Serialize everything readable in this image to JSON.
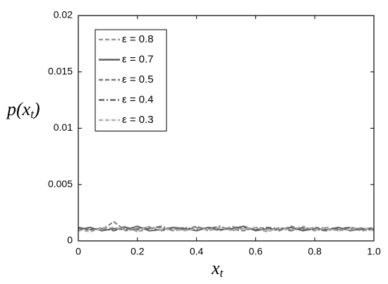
{
  "chart_data": {
    "type": "line",
    "x_label": [
      "x",
      "t"
    ],
    "y_label": [
      "p(x",
      "t",
      ")"
    ],
    "x": [
      0,
      0.04,
      0.08,
      0.12,
      0.16,
      0.2,
      0.24,
      0.28,
      0.32,
      0.36,
      0.4,
      0.44,
      0.48,
      0.52,
      0.56,
      0.6,
      0.64,
      0.68,
      0.72,
      0.76,
      0.8,
      0.84,
      0.88,
      0.92,
      0.96,
      1
    ],
    "series": [
      {
        "name": "ε = 0.8",
        "color": "#9a9a9a",
        "style": "dashed",
        "values": [
          0.0011,
          0.0009,
          0.0012,
          0.001,
          0.0013,
          0.0008,
          0.0011,
          0.0012,
          0.0009,
          0.001,
          0.0012,
          0.0011,
          0.0009,
          0.0013,
          0.001,
          0.0011,
          0.0008,
          0.0012,
          0.001,
          0.0011,
          0.0009,
          0.0012,
          0.001,
          0.0011,
          0.0009,
          0.001
        ]
      },
      {
        "name": "ε = 0.7",
        "color": "#606060",
        "style": "solid",
        "values": [
          0.001,
          0.0012,
          0.0009,
          0.0011,
          0.001,
          0.0013,
          0.0009,
          0.001,
          0.0012,
          0.0011,
          0.0009,
          0.0012,
          0.001,
          0.0011,
          0.0013,
          0.0009,
          0.0011,
          0.001,
          0.0012,
          0.0009,
          0.0011,
          0.001,
          0.0012,
          0.0009,
          0.0011,
          0.001
        ]
      },
      {
        "name": "ε = 0.5",
        "color": "#7a7a7a",
        "style": "dashed",
        "values": [
          0.0009,
          0.0011,
          0.001,
          0.0017,
          0.0009,
          0.0011,
          0.0012,
          0.0009,
          0.0011,
          0.001,
          0.0013,
          0.0009,
          0.0012,
          0.001,
          0.0009,
          0.0012,
          0.0011,
          0.0009,
          0.0013,
          0.001,
          0.0012,
          0.0011,
          0.0009,
          0.0012,
          0.001,
          0.0011
        ]
      },
      {
        "name": "ε = 0.4",
        "color": "#676767",
        "style": "dashdot",
        "values": [
          0.0012,
          0.001,
          0.0011,
          0.0009,
          0.0012,
          0.001,
          0.0011,
          0.0013,
          0.001,
          0.0012,
          0.001,
          0.0011,
          0.0013,
          0.0009,
          0.0012,
          0.001,
          0.0012,
          0.0011,
          0.0009,
          0.0012,
          0.001,
          0.0009,
          0.0011,
          0.0012,
          0.001,
          0.0012
        ]
      },
      {
        "name": "ε = 0.3",
        "color": "#b0b0b0",
        "style": "dashed",
        "values": [
          0.001,
          0.0008,
          0.0011,
          0.0012,
          0.001,
          0.0009,
          0.0013,
          0.001,
          0.0011,
          0.0009,
          0.0011,
          0.001,
          0.0012,
          0.0009,
          0.0011,
          0.0012,
          0.0009,
          0.0011,
          0.001,
          0.0013,
          0.001,
          0.0011,
          0.0009,
          0.001,
          0.0012,
          0.0009
        ]
      }
    ],
    "xlim": [
      0,
      1
    ],
    "xticks": [
      0,
      0.2,
      0.4,
      0.6,
      0.8,
      {
        "value": 1,
        "label": "1.0"
      }
    ],
    "ylim": [
      0,
      0.02
    ],
    "yticks": [
      0,
      0.005,
      0.01,
      0.015,
      0.02
    ],
    "legend": "upper left",
    "grid": false
  }
}
